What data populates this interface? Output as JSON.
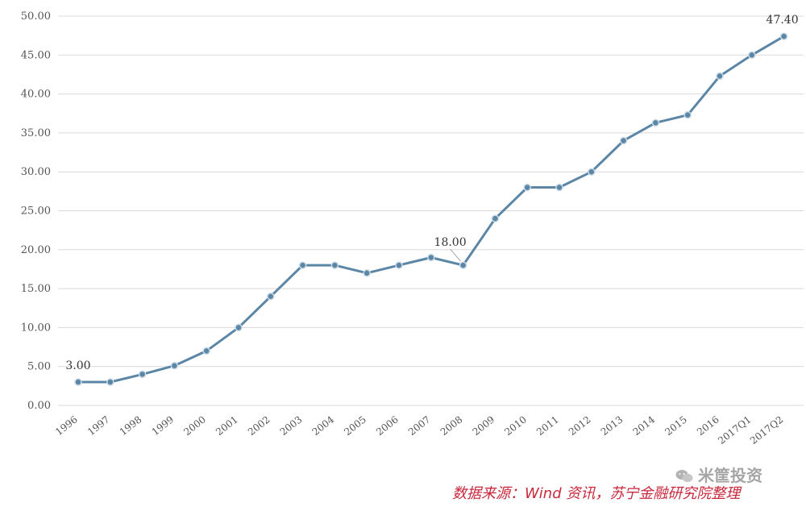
{
  "chart_data": {
    "type": "line",
    "categories": [
      "1996",
      "1997",
      "1998",
      "1999",
      "2000",
      "2001",
      "2002",
      "2003",
      "2004",
      "2005",
      "2006",
      "2007",
      "2008",
      "2009",
      "2010",
      "2011",
      "2012",
      "2013",
      "2014",
      "2015",
      "2016",
      "2017Q1",
      "2017Q2"
    ],
    "series": [
      {
        "values": [
          3.0,
          3.0,
          4.0,
          5.1,
          7.0,
          10.0,
          14.0,
          18.0,
          18.0,
          17.0,
          18.0,
          19.0,
          18.0,
          24.0,
          28.0,
          28.0,
          30.0,
          34.0,
          36.3,
          37.3,
          42.3,
          45.0,
          47.4
        ]
      }
    ],
    "data_labels": [
      {
        "index": 0,
        "text": "3.00"
      },
      {
        "index": 12,
        "text": "18.00"
      },
      {
        "index": 22,
        "text": "47.40"
      }
    ],
    "yticks": [
      "0.00",
      "5.00",
      "10.00",
      "15.00",
      "20.00",
      "25.00",
      "30.00",
      "35.00",
      "40.00",
      "45.00",
      "50.00"
    ],
    "ylim": [
      0,
      50
    ],
    "grid": true,
    "colors": {
      "line": "#5b86a6",
      "grid": "#d9d9d9"
    },
    "title": "",
    "xlabel": "",
    "ylabel": ""
  },
  "footer": {
    "source": "数据来源：Wind 资讯，苏宁金融研究院整理",
    "watermark": "米筐投资",
    "watermark_icon": "wechat-icon"
  }
}
